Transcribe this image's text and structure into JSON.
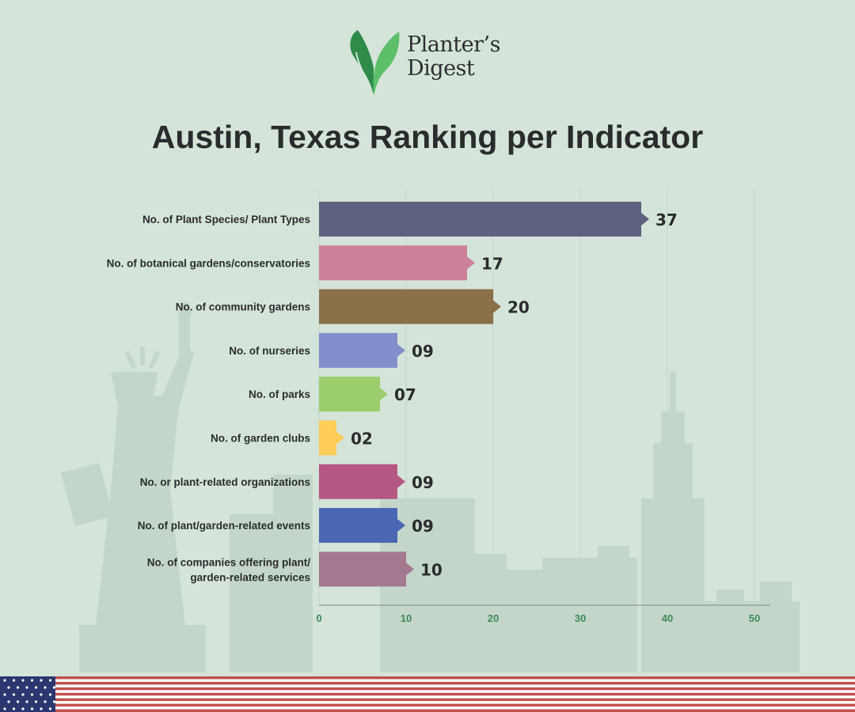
{
  "brand": {
    "line1": "Planter’s",
    "line2": "Digest",
    "logo_icon": "leaf-logo-icon",
    "colors": {
      "leaf_dark": "#2e8b4a",
      "leaf_light": "#5cc06a"
    }
  },
  "chart_data": {
    "type": "bar",
    "orientation": "horizontal",
    "title": "Austin, Texas Ranking per Indicator",
    "xlabel": "",
    "ylabel": "",
    "xlim": [
      0,
      52
    ],
    "x_ticks": [
      0,
      10,
      20,
      30,
      40,
      50
    ],
    "grid": true,
    "categories": [
      "No. of Plant Species/ Plant Types",
      "No. of botanical gardens/conservatories",
      "No. of community gardens",
      "No. of nurseries",
      "No. of parks",
      "No. of garden clubs",
      "No. or plant-related organizations",
      "No. of plant/garden-related events",
      "No. of companies offering plant/ garden-related services"
    ],
    "values": [
      37,
      17,
      20,
      9,
      7,
      2,
      9,
      9,
      10
    ],
    "value_labels": [
      "37",
      "17",
      "20",
      "09",
      "07",
      "02",
      "09",
      "09",
      "10"
    ],
    "colors": [
      "#5e617f",
      "#cc819b",
      "#8b714a",
      "#828fcd",
      "#9bcd6c",
      "#ffcd58",
      "#b55783",
      "#4a67b3",
      "#a47990"
    ]
  },
  "colors": {
    "background": "#d5e4d9",
    "tick_label": "#3d8a57",
    "flag_red": "#c0504d",
    "flag_blue": "#2a3770"
  }
}
